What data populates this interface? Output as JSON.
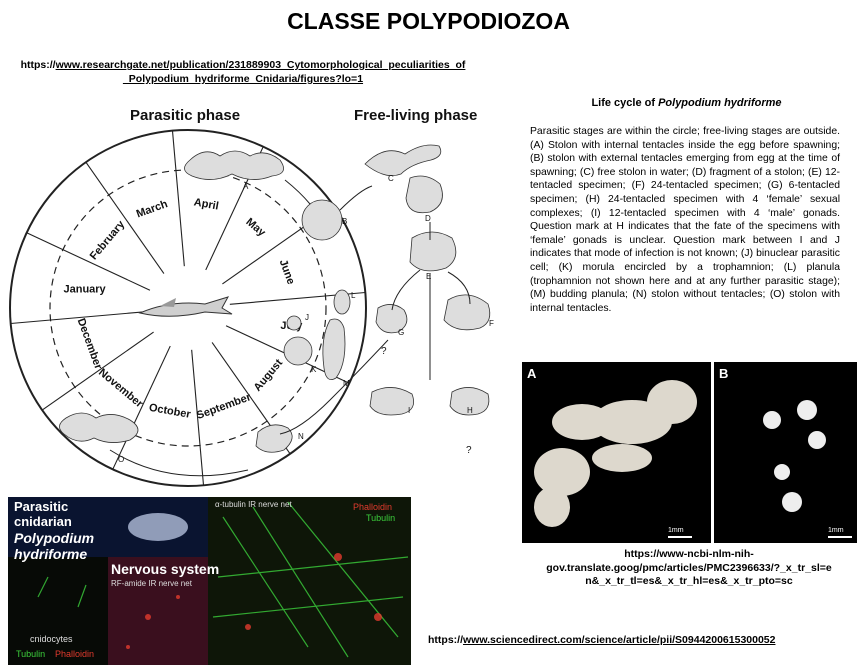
{
  "title": "CLASSE POLYPODIOZOA",
  "source_top": {
    "prefix": "https://",
    "link_line1": "www.researchgate.net/publication/231889903_Cytomorphological_peculiarities_of",
    "link_line2": "_Polypodium_hydriforme_Cnidaria/figures?lo=1"
  },
  "caption": {
    "heading_plain": "Life cycle of ",
    "heading_italic": "Polypodium hydriforme",
    "body": "Parasitic stages are within the circle; free-living stages are outside. (A) Stolon with internal tentacles inside the egg before spawning; (B) stolon with external tentacles emerging from egg at the time of spawning; (C) free stolon in water; (D) fragment of a stolon; (E) 12-tentacled specimen; (F) 24-tentacled specimen; (G) 6-tentacled specimen; (H) 24-tentacled specimen with 4 ‘female’ sexual complexes; (I) 12-tentacled specimen with 4 ‘male’ gonads. Question mark at H indicates that the fate of the specimens with ‘female’ gonads is unclear. Question mark between I and J indicates that mode of infection is not known; (J) binuclear parasitic cell; (K) morula encircled by a trophamnion; (L) planula (trophamnion not shown here and at any further parasitic stage); (M) budding planula; (N) stolon without tentacles; (O) stolon with internal tentacles."
  },
  "diagram": {
    "phase_parasitic": "Parasitic phase",
    "phase_free": "Free-living phase",
    "months": [
      "March",
      "April",
      "May",
      "June",
      "July",
      "August",
      "September",
      "October",
      "November",
      "December",
      "January",
      "February"
    ],
    "stage_letters": [
      "A",
      "B",
      "C",
      "D",
      "E",
      "F",
      "G",
      "H",
      "I",
      "J",
      "K",
      "L",
      "M",
      "N",
      "O"
    ],
    "question_mark": "?"
  },
  "photo": {
    "label_a": "A",
    "label_b": "B",
    "scale_a": "1mm",
    "scale_b": "1mm"
  },
  "source_mid": {
    "line1": "https://www-ncbi-nlm-nih-",
    "line2": "gov.translate.goog/pmc/articles/PMC2396633/?_x_tr_sl=e",
    "line3": "n&_x_tr_tl=es&_x_tr_hl=es&_x_tr_pto=sc"
  },
  "micro": {
    "line1": "Parasitic",
    "line2": "cnidarian",
    "line3": "Polypodium",
    "line4": "hydriforme",
    "nervous": "Nervous system",
    "rf": "RF-amide IR nerve net",
    "alpha": "α-tubulin IR nerve net",
    "phalloidin": "Phalloidin",
    "tubulin": "Tubulin",
    "cnidocytes": "cnidocytes",
    "tubulin2": "Tubulin",
    "phalloidin2": "Phalloidin",
    "colors": {
      "green": "#3ccf3c",
      "red": "#e23b2e"
    }
  },
  "source_bottom": {
    "prefix": "https://",
    "link": "www.sciencedirect.com/science/article/pii/S0944200615300052"
  }
}
